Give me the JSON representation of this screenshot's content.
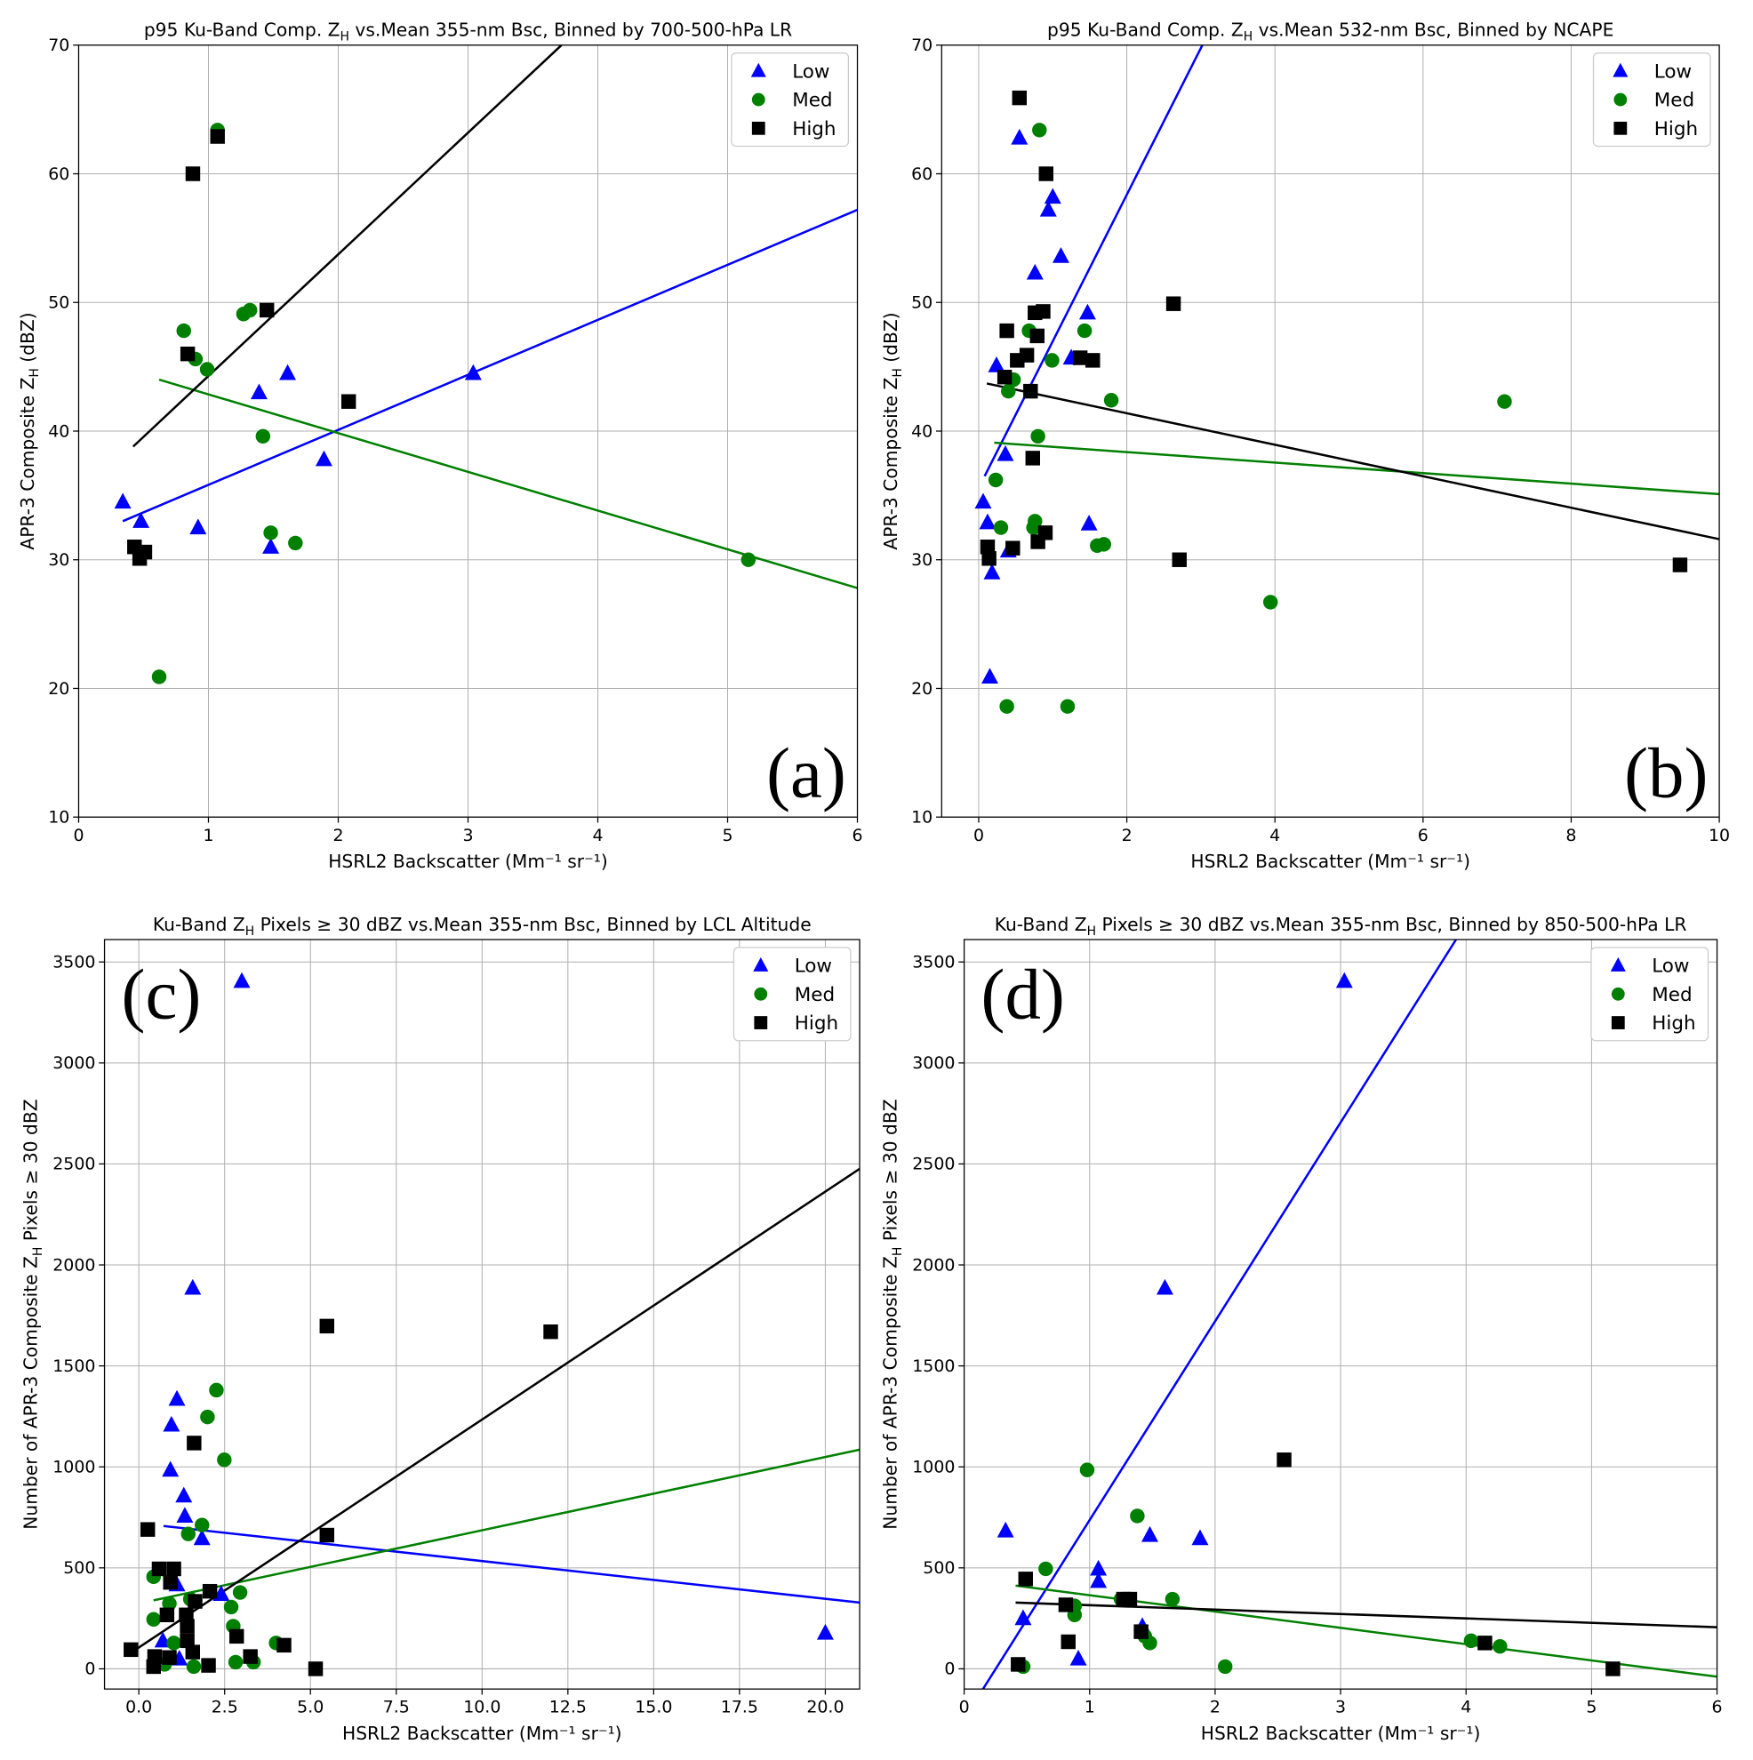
{
  "chart_data": [
    {
      "panel": "(a)",
      "type": "scatter",
      "title": {
        "pre": "p95 Ku-Band Comp. Z",
        "sub": "H",
        "post": " vs.Mean 355-nm Bsc, Binned by 700-500-hPa LR"
      },
      "xlabel": "HSRL2 Backscatter (Mm⁻¹ sr⁻¹)",
      "ylabel": {
        "pre": "APR-3 Composite Z",
        "sub": "H",
        "post": " (dBZ)"
      },
      "xlim": [
        0,
        6
      ],
      "ylim": [
        10,
        70
      ],
      "xticks": [
        "0",
        "1",
        "2",
        "3",
        "4",
        "5",
        "6"
      ],
      "xtick_values": [
        0,
        1,
        2,
        3,
        4,
        5,
        6
      ],
      "yticks": [
        "10",
        "20",
        "30",
        "40",
        "50",
        "60",
        "70"
      ],
      "ytick_values": [
        10,
        20,
        30,
        40,
        50,
        60,
        70
      ],
      "grid": true,
      "legend": "top-right",
      "label_position": "bottom-right",
      "series": [
        {
          "name": "Low",
          "marker": "triangle",
          "color": "#0000ff",
          "points": [
            [
              0.34,
              34.5
            ],
            [
              0.48,
              33
            ],
            [
              0.92,
              32.5
            ],
            [
              1.39,
              43
            ],
            [
              1.48,
              31
            ],
            [
              1.61,
              44.5
            ],
            [
              1.89,
              37.8
            ],
            [
              3.04,
              44.5
            ]
          ],
          "fit": [
            [
              0.34,
              33
            ],
            [
              6,
              57.2
            ]
          ]
        },
        {
          "name": "Med",
          "marker": "circle",
          "color": "#008000",
          "points": [
            [
              0.62,
              20.9
            ],
            [
              0.81,
              47.8
            ],
            [
              0.9,
              45.6
            ],
            [
              0.99,
              44.8
            ],
            [
              1.07,
              63.4
            ],
            [
              1.27,
              49.1
            ],
            [
              1.32,
              49.4
            ],
            [
              1.42,
              39.6
            ],
            [
              1.48,
              32.1
            ],
            [
              1.67,
              31.3
            ],
            [
              5.16,
              30
            ]
          ],
          "fit": [
            [
              0.62,
              44
            ],
            [
              6,
              27.8
            ]
          ]
        },
        {
          "name": "High",
          "marker": "square",
          "color": "#000000",
          "points": [
            [
              0.43,
              31
            ],
            [
              0.47,
              30.1
            ],
            [
              0.51,
              30.6
            ],
            [
              0.84,
              46
            ],
            [
              0.88,
              60
            ],
            [
              1.07,
              62.9
            ],
            [
              1.45,
              49.4
            ],
            [
              2.08,
              42.3
            ]
          ],
          "fit": [
            [
              0.42,
              38.8
            ],
            [
              3.72,
              70
            ]
          ]
        }
      ]
    },
    {
      "panel": "(b)",
      "type": "scatter",
      "title": {
        "pre": "p95 Ku-Band Comp. Z",
        "sub": "H",
        "post": " vs.Mean 532-nm Bsc, Binned by NCAPE"
      },
      "xlabel": "HSRL2 Backscatter (Mm⁻¹ sr⁻¹)",
      "ylabel": {
        "pre": "APR-3 Composite Z",
        "sub": "H",
        "post": " (dBZ)"
      },
      "xlim": [
        -0.5,
        10
      ],
      "ylim": [
        10,
        70
      ],
      "xticks": [
        "0",
        "2",
        "4",
        "6",
        "8",
        "10"
      ],
      "xtick_values": [
        0,
        2,
        4,
        6,
        8,
        10
      ],
      "yticks": [
        "10",
        "20",
        "30",
        "40",
        "50",
        "60",
        "70"
      ],
      "ytick_values": [
        10,
        20,
        30,
        40,
        50,
        60,
        70
      ],
      "grid": true,
      "legend": "top-right",
      "label_position": "bottom-right",
      "series": [
        {
          "name": "Low",
          "marker": "triangle",
          "color": "#0000ff",
          "points": [
            [
              0.06,
              34.5
            ],
            [
              0.12,
              32.9
            ],
            [
              0.18,
              29
            ],
            [
              0.15,
              20.9
            ],
            [
              0.24,
              45.1
            ],
            [
              0.36,
              38.2
            ],
            [
              0.4,
              30.7
            ],
            [
              0.55,
              62.8
            ],
            [
              0.76,
              52.3
            ],
            [
              0.94,
              57.2
            ],
            [
              1.0,
              58.2
            ],
            [
              1.11,
              53.6
            ],
            [
              1.25,
              45.7
            ],
            [
              1.47,
              49.2
            ],
            [
              1.49,
              32.8
            ]
          ],
          "fit": [
            [
              0.08,
              36.5
            ],
            [
              3.02,
              70
            ]
          ]
        },
        {
          "name": "Med",
          "marker": "circle",
          "color": "#008000",
          "points": [
            [
              0.23,
              36.2
            ],
            [
              0.3,
              32.5
            ],
            [
              0.38,
              18.6
            ],
            [
              0.4,
              43.1
            ],
            [
              0.47,
              44
            ],
            [
              0.68,
              47.8
            ],
            [
              0.74,
              32.5
            ],
            [
              0.76,
              33
            ],
            [
              0.8,
              39.6
            ],
            [
              0.82,
              63.4
            ],
            [
              0.99,
              45.5
            ],
            [
              1.2,
              18.6
            ],
            [
              1.43,
              47.8
            ],
            [
              1.6,
              31.1
            ],
            [
              1.69,
              31.2
            ],
            [
              1.79,
              42.4
            ],
            [
              3.94,
              26.7
            ],
            [
              7.1,
              42.3
            ]
          ],
          "fit": [
            [
              0.21,
              39.1
            ],
            [
              10,
              35.1
            ]
          ]
        },
        {
          "name": "High",
          "marker": "square",
          "color": "#000000",
          "points": [
            [
              0.12,
              31
            ],
            [
              0.14,
              30.1
            ],
            [
              0.35,
              44.2
            ],
            [
              0.38,
              47.8
            ],
            [
              0.46,
              30.9
            ],
            [
              0.52,
              45.5
            ],
            [
              0.55,
              65.9
            ],
            [
              0.65,
              45.9
            ],
            [
              0.7,
              43.1
            ],
            [
              0.73,
              37.9
            ],
            [
              0.76,
              49.2
            ],
            [
              0.79,
              47.4
            ],
            [
              0.87,
              49.3
            ],
            [
              0.9,
              32.1
            ],
            [
              0.91,
              60
            ],
            [
              0.8,
              31.4
            ],
            [
              1.37,
              45.7
            ],
            [
              1.54,
              45.5
            ],
            [
              2.63,
              49.9
            ],
            [
              2.71,
              30
            ],
            [
              9.47,
              29.6
            ]
          ],
          "fit": [
            [
              0.11,
              43.7
            ],
            [
              10,
              31.6
            ]
          ]
        }
      ]
    },
    {
      "panel": "(c)",
      "type": "scatter",
      "title": {
        "pre": "Ku-Band Z",
        "sub": "H",
        "post": " Pixels ≥ 30 dBZ vs.Mean 355-nm Bsc, Binned by LCL Altitude"
      },
      "xlabel": "HSRL2 Backscatter (Mm⁻¹ sr⁻¹)",
      "ylabel": {
        "pre": "Number of APR-3 Composite Z",
        "sub": "H",
        "post": " Pixels ≥ 30 dBZ"
      },
      "xlim": [
        -1,
        21
      ],
      "ylim": [
        -100,
        3611
      ],
      "xticks": [
        "0.0",
        "2.5",
        "5.0",
        "7.5",
        "10.0",
        "12.5",
        "15.0",
        "17.5",
        "20.0"
      ],
      "xtick_values": [
        0,
        2.5,
        5,
        7.5,
        10,
        12.5,
        15,
        17.5,
        20
      ],
      "yticks": [
        "0",
        "500",
        "1000",
        "1500",
        "2000",
        "2500",
        "3000",
        "3500"
      ],
      "ytick_values": [
        0,
        500,
        1000,
        1500,
        2000,
        2500,
        3000,
        3500
      ],
      "grid": true,
      "legend": "top-right",
      "label_position": "top-left",
      "series": [
        {
          "name": "Low",
          "marker": "triangle",
          "color": "#0000ff",
          "points": [
            [
              3.0,
              3405
            ],
            [
              1.57,
              1886
            ],
            [
              1.11,
              1336
            ],
            [
              0.95,
              1208
            ],
            [
              0.92,
              985
            ],
            [
              1.31,
              857
            ],
            [
              1.34,
              757
            ],
            [
              1.84,
              646
            ],
            [
              1.11,
              417
            ],
            [
              20,
              178
            ],
            [
              1.18,
              50
            ],
            [
              0.7,
              139
            ],
            [
              2.4,
              370
            ]
          ],
          "fit": [
            [
              0.72,
              707
            ],
            [
              21,
              328
            ]
          ]
        },
        {
          "name": "Med",
          "marker": "circle",
          "color": "#008000",
          "points": [
            [
              2.26,
              1380
            ],
            [
              2.0,
              1247
            ],
            [
              2.49,
              1035
            ],
            [
              1.84,
              712
            ],
            [
              1.44,
              668
            ],
            [
              0.43,
              456
            ],
            [
              2.95,
              378
            ],
            [
              2.69,
              306
            ],
            [
              1.5,
              345
            ],
            [
              0.43,
              245
            ],
            [
              1.02,
              128
            ],
            [
              0.75,
              22
            ],
            [
              1.6,
              11
            ],
            [
              2.82,
              33
            ],
            [
              3.34,
              33
            ],
            [
              4.0,
              128
            ],
            [
              0.89,
              323
            ],
            [
              2.75,
              211
            ]
          ],
          "fit": [
            [
              0.43,
              339
            ],
            [
              21,
              1085
            ]
          ]
        },
        {
          "name": "High",
          "marker": "square",
          "color": "#000000",
          "points": [
            [
              0.26,
              690
            ],
            [
              0.59,
              495
            ],
            [
              1.02,
              495
            ],
            [
              0.92,
              428
            ],
            [
              0.82,
              267
            ],
            [
              1.61,
              1118
            ],
            [
              1.64,
              334
            ],
            [
              2.07,
              384
            ],
            [
              1.38,
              267
            ],
            [
              1.41,
              211
            ],
            [
              1.41,
              139
            ],
            [
              1.57,
              83
            ],
            [
              0.89,
              56
            ],
            [
              0.43,
              11
            ],
            [
              0.46,
              61
            ],
            [
              -0.23,
              95
            ],
            [
              2.03,
              17
            ],
            [
              2.85,
              161
            ],
            [
              3.25,
              61
            ],
            [
              4.23,
              117
            ],
            [
              5.15,
              0
            ],
            [
              5.48,
              1697
            ],
            [
              5.48,
              662
            ],
            [
              12.0,
              1669
            ]
          ],
          "fit": [
            [
              -0.2,
              83
            ],
            [
              21,
              2476
            ]
          ]
        }
      ]
    },
    {
      "panel": "(d)",
      "type": "scatter",
      "title": {
        "pre": "Ku-Band Z",
        "sub": "H",
        "post": " Pixels ≥ 30 dBZ vs.Mean 355-nm Bsc, Binned by 850-500-hPa LR"
      },
      "xlabel": "HSRL2 Backscatter (Mm⁻¹ sr⁻¹)",
      "ylabel": {
        "pre": "Number of APR-3 Composite Z",
        "sub": "H",
        "post": " Pixels ≥ 30 dBZ"
      },
      "xlim": [
        0,
        6
      ],
      "ylim": [
        -100,
        3611
      ],
      "xticks": [
        "0",
        "1",
        "2",
        "3",
        "4",
        "5",
        "6"
      ],
      "xtick_values": [
        0,
        1,
        2,
        3,
        4,
        5,
        6
      ],
      "yticks": [
        "0",
        "500",
        "1000",
        "1500",
        "2000",
        "2500",
        "3000",
        "3500"
      ],
      "ytick_values": [
        0,
        500,
        1000,
        1500,
        2000,
        2500,
        3000,
        3500
      ],
      "grid": true,
      "legend": "top-right",
      "label_position": "top-left",
      "series": [
        {
          "name": "Low",
          "marker": "triangle",
          "color": "#0000ff",
          "points": [
            [
              3.03,
              3405
            ],
            [
              1.6,
              1886
            ],
            [
              0.33,
              684
            ],
            [
              1.48,
              662
            ],
            [
              1.88,
              646
            ],
            [
              1.07,
              495
            ],
            [
              1.07,
              434
            ],
            [
              0.47,
              250
            ],
            [
              0.91,
              50
            ],
            [
              1.42,
              211
            ]
          ],
          "fit": [
            [
              0.15,
              -100
            ],
            [
              3.92,
              3611
            ]
          ]
        },
        {
          "name": "Med",
          "marker": "circle",
          "color": "#008000",
          "points": [
            [
              0.98,
              985
            ],
            [
              1.38,
              757
            ],
            [
              0.65,
              495
            ],
            [
              0.88,
              312
            ],
            [
              0.88,
              267
            ],
            [
              1.66,
              345
            ],
            [
              1.44,
              161
            ],
            [
              1.48,
              128
            ],
            [
              0.47,
              11
            ],
            [
              2.08,
              11
            ],
            [
              4.04,
              139
            ],
            [
              4.27,
              111
            ],
            [
              1.25,
              345
            ]
          ],
          "fit": [
            [
              0.41,
              412
            ],
            [
              6,
              -39
            ]
          ]
        },
        {
          "name": "High",
          "marker": "square",
          "color": "#000000",
          "points": [
            [
              2.55,
              1035
            ],
            [
              0.49,
              445
            ],
            [
              0.81,
              317
            ],
            [
              1.27,
              345
            ],
            [
              1.32,
              345
            ],
            [
              0.83,
              134
            ],
            [
              1.41,
              184
            ],
            [
              0.43,
              22
            ],
            [
              4.15,
              128
            ],
            [
              5.17,
              0
            ]
          ],
          "fit": [
            [
              0.41,
              328
            ],
            [
              6,
              206
            ]
          ]
        }
      ]
    }
  ]
}
